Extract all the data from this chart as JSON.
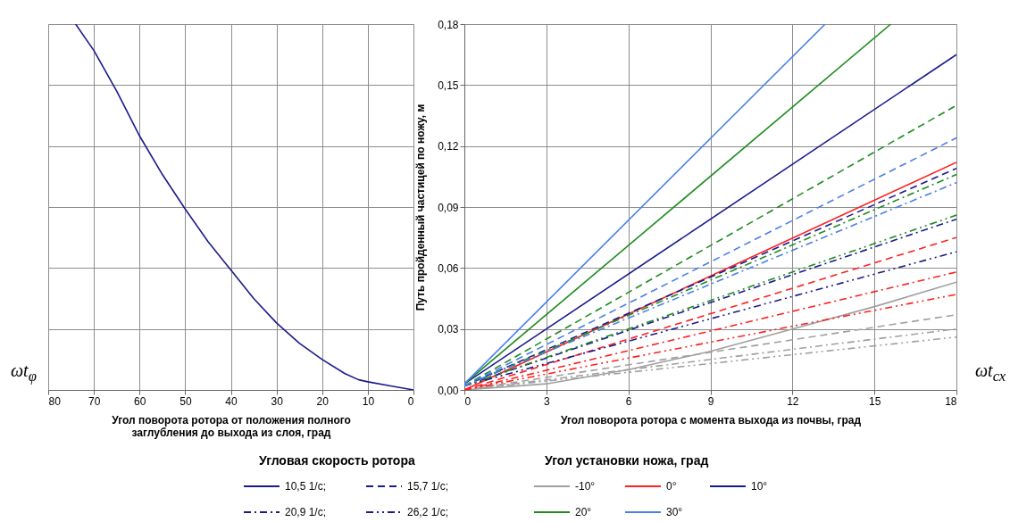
{
  "chart_data": [
    {
      "type": "line",
      "xlabel": "Угол поворота ротора от положения полного заглубления до выхода из слоя, град",
      "xlim": [
        80,
        0
      ],
      "xticks": [
        80,
        70,
        60,
        50,
        40,
        30,
        20,
        10,
        0
      ],
      "ylim": [
        0,
        0.18
      ],
      "yticks": [
        0,
        0.03,
        0.06,
        0.09,
        0.12,
        0.15,
        0.18
      ],
      "tick_labels": "x",
      "grid": true,
      "line_style": "solid",
      "annotations": [
        "ωt$_{φ}$"
      ],
      "series": [
        {
          "color": "#1a1a8c",
          "x": [
            74,
            70,
            65,
            60,
            55,
            50,
            45,
            40,
            35,
            30,
            25,
            20,
            15,
            12,
            10,
            5,
            0
          ],
          "values": [
            0.18,
            0.167,
            0.147,
            0.125,
            0.106,
            0.089,
            0.073,
            0.059,
            0.045,
            0.033,
            0.023,
            0.015,
            0.008,
            0.005,
            0.004,
            0.002,
            0
          ]
        }
      ]
    },
    {
      "type": "line",
      "xlabel": "Угол поворота ротора с момента выхода из почвы, град",
      "ylabel": "Путь пройденный частицей по ножу, м",
      "xlim": [
        0,
        18
      ],
      "xticks": [
        0,
        3,
        6,
        9,
        12,
        15,
        18
      ],
      "ylim": [
        0,
        0.18
      ],
      "yticks": [
        {
          "value": 0,
          "label": "0,00"
        },
        {
          "value": 0.03,
          "label": "0,03"
        },
        {
          "value": 0.06,
          "label": "0,06"
        },
        {
          "value": 0.09,
          "label": "0,09"
        },
        {
          "value": 0.12,
          "label": "0,12"
        },
        {
          "value": 0.15,
          "label": "0,15"
        },
        {
          "value": 0.18,
          "label": "0,18"
        }
      ],
      "grid": true,
      "annotations": [
        "ωt$_{сх}$",
        "Угловая скорость ротора",
        "10,5 1/с;",
        "15,7 1/с;",
        "20,9 1/с;",
        "26,2 1/с;",
        "Угол установки ножа, град",
        "-10°",
        "0°",
        "10°",
        "20°",
        "30°"
      ],
      "series": [
        {
          "color": "#a0a0a0",
          "line_style": "solid",
          "x": [
            0,
            3,
            6,
            9,
            12,
            15,
            18
          ],
          "values": [
            0,
            0.003,
            0.01,
            0.019,
            0.03,
            0.041,
            0.053
          ]
        },
        {
          "color": "#a0a0a0",
          "line_style": "dashed",
          "x": [
            0,
            18
          ],
          "values": [
            0,
            0.037
          ]
        },
        {
          "color": "#a0a0a0",
          "line_style": "dashdot",
          "x": [
            0,
            18
          ],
          "values": [
            0,
            0.03
          ]
        },
        {
          "color": "#a0a0a0",
          "line_style": "dashdotdot",
          "x": [
            0,
            18
          ],
          "values": [
            0,
            0.026
          ]
        },
        {
          "color": "#ff2020",
          "line_style": "solid",
          "x": [
            0,
            18
          ],
          "values": [
            0,
            0.112
          ]
        },
        {
          "color": "#ff2020",
          "line_style": "dashed",
          "x": [
            0,
            18
          ],
          "values": [
            0,
            0.075
          ]
        },
        {
          "color": "#ff2020",
          "line_style": "dashdot",
          "x": [
            0,
            18
          ],
          "values": [
            0,
            0.058
          ]
        },
        {
          "color": "#ff2020",
          "line_style": "dashdotdot",
          "x": [
            0,
            18
          ],
          "values": [
            0,
            0.047
          ]
        },
        {
          "color": "#1a1a8c",
          "line_style": "solid",
          "x": [
            0,
            18
          ],
          "values": [
            0.003,
            0.165
          ]
        },
        {
          "color": "#1a1a8c",
          "line_style": "dashed",
          "x": [
            0,
            18
          ],
          "values": [
            0.002,
            0.109
          ]
        },
        {
          "color": "#1a1a8c",
          "line_style": "dashdot",
          "x": [
            0,
            18
          ],
          "values": [
            0.002,
            0.084
          ]
        },
        {
          "color": "#1a1a8c",
          "line_style": "dashdotdot",
          "x": [
            0,
            18
          ],
          "values": [
            0.002,
            0.068
          ]
        },
        {
          "color": "#1e8c1e",
          "line_style": "solid",
          "x": [
            0,
            15.6
          ],
          "values": [
            0.003,
            0.18
          ]
        },
        {
          "color": "#1e8c1e",
          "line_style": "dashed",
          "x": [
            0,
            18
          ],
          "values": [
            0.002,
            0.14
          ]
        },
        {
          "color": "#1e8c1e",
          "line_style": "dashdot",
          "x": [
            0,
            18
          ],
          "values": [
            0.002,
            0.106
          ]
        },
        {
          "color": "#1e8c1e",
          "line_style": "dashdotdot",
          "x": [
            0,
            18
          ],
          "values": [
            0.002,
            0.086
          ]
        },
        {
          "color": "#4a7fe8",
          "line_style": "solid",
          "x": [
            0,
            13.2
          ],
          "values": [
            0.003,
            0.18
          ]
        },
        {
          "color": "#4a7fe8",
          "line_style": "dashed",
          "x": [
            0,
            18
          ],
          "values": [
            0.002,
            0.124
          ]
        },
        {
          "color": "#4a7fe8",
          "line_style": "dashdot",
          "x": [
            0,
            18
          ],
          "values": [
            0.002,
            0.102
          ]
        }
      ]
    }
  ]
}
